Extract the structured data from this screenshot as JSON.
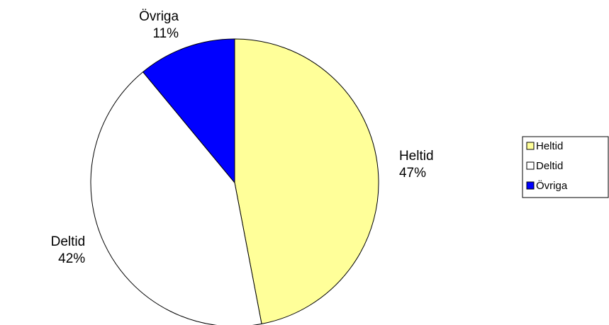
{
  "chart_data": {
    "type": "pie",
    "categories": [
      "Heltid",
      "Deltid",
      "Övriga"
    ],
    "values": [
      47,
      42,
      11
    ],
    "value_labels": [
      "47%",
      "42%",
      "11%"
    ],
    "colors": [
      "#ffff99",
      "#ffffff",
      "#0000ff"
    ],
    "legend": "right"
  }
}
